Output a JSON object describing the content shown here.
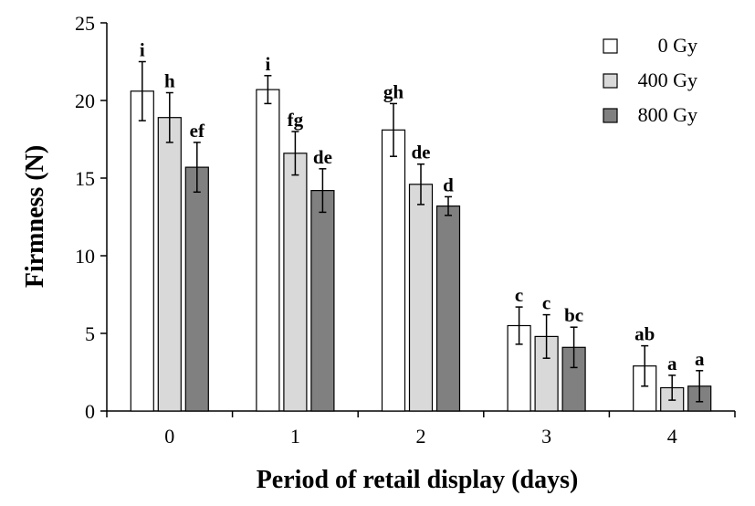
{
  "chart_data": {
    "type": "bar",
    "title": "",
    "xlabel": "Period of retail display (days)",
    "ylabel": "Firmness (N)",
    "ylim": [
      0,
      25
    ],
    "yticks": [
      0,
      5,
      10,
      15,
      20,
      25
    ],
    "categories": [
      "0",
      "1",
      "2",
      "3",
      "4"
    ],
    "legend_position": "top-right",
    "grid": false,
    "series": [
      {
        "name": "0 Gy",
        "color": "#ffffff",
        "values": [
          20.6,
          20.7,
          18.1,
          5.5,
          2.9
        ],
        "errors": [
          1.9,
          0.9,
          1.7,
          1.2,
          1.3
        ],
        "labels": [
          "i",
          "i",
          "gh",
          "c",
          "ab"
        ]
      },
      {
        "name": "400 Gy",
        "color": "#d9d9d9",
        "values": [
          18.9,
          16.6,
          14.6,
          4.8,
          1.5
        ],
        "errors": [
          1.6,
          1.4,
          1.3,
          1.4,
          0.8
        ],
        "labels": [
          "h",
          "fg",
          "de",
          "c",
          "a"
        ]
      },
      {
        "name": "800 Gy",
        "color": "#808080",
        "values": [
          15.7,
          14.2,
          13.2,
          4.1,
          1.6
        ],
        "errors": [
          1.6,
          1.4,
          0.6,
          1.3,
          1.0
        ],
        "labels": [
          "ef",
          "de",
          "d",
          "bc",
          "a"
        ]
      }
    ]
  }
}
